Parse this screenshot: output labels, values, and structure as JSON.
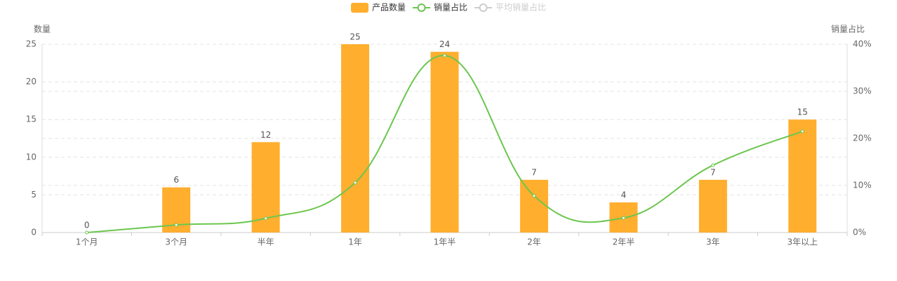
{
  "chart_data": {
    "type": "bar-line",
    "categories": [
      "1个月",
      "3个月",
      "半年",
      "1年",
      "1年半",
      "2年",
      "2年半",
      "3年",
      "3年以上"
    ],
    "series": [
      {
        "name": "产品数量",
        "type": "bar",
        "color": "#ffae2e",
        "values": [
          0,
          6,
          12,
          25,
          24,
          7,
          4,
          7,
          15
        ]
      },
      {
        "name": "销量占比",
        "type": "line",
        "axis": "y2",
        "color": "#6cc64f",
        "smooth": true,
        "values": [
          0,
          1.6,
          3.0,
          10.6,
          37.6,
          7.8,
          3.1,
          14.3,
          21.5
        ]
      },
      {
        "name": "平均销量占比",
        "type": "line",
        "axis": "y2",
        "color": "#cccccc",
        "hidden": true
      }
    ],
    "y_label": "数量",
    "y2_label": "销量占比",
    "ylim": [
      0,
      25
    ],
    "yticks": [
      0,
      5,
      10,
      15,
      20,
      25
    ],
    "y2lim": [
      0,
      40
    ],
    "y2ticks": [
      {
        "value": 0,
        "label": "0%"
      },
      {
        "value": 10,
        "label": "10%"
      },
      {
        "value": 20,
        "label": "20%"
      },
      {
        "value": 30,
        "label": "30%"
      },
      {
        "value": 40,
        "label": "40%"
      }
    ],
    "grid": true,
    "legend": "top"
  }
}
